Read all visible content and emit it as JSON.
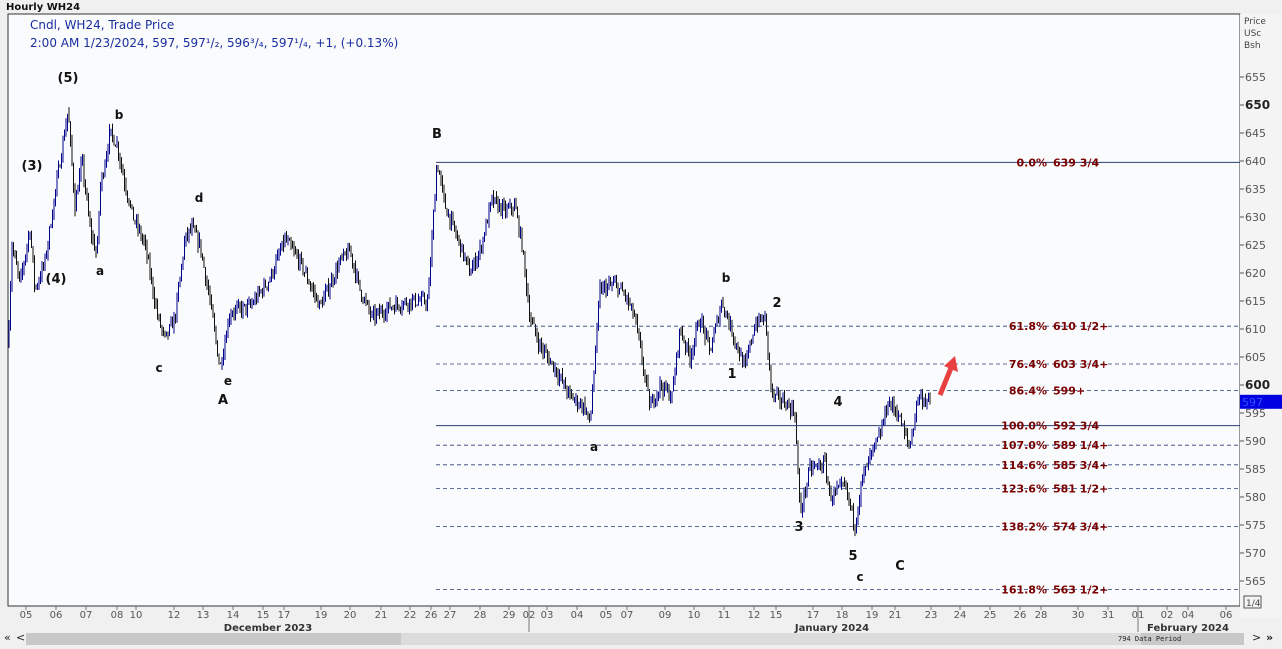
{
  "window": {
    "title": "Hourly WH24"
  },
  "legend": {
    "line1": "Cndl, WH24, Trade Price",
    "line2": "2:00 AM 1/23/2024, 597, 597¹/₂, 596³/₄, 597¹/₄, +1, (+0.13%)"
  },
  "axis": {
    "unit_lines": [
      "Price",
      "USc",
      "Bsh"
    ],
    "page": "1/4",
    "data_period": "794 Data Period",
    "nav_first": "«",
    "nav_prev": "<",
    "nav_next": ">",
    "nav_last": "»"
  },
  "chart_data": {
    "type": "candlestick",
    "instrument": "WH24",
    "interval": "Hourly",
    "ylim": [
      562,
      657
    ],
    "y_ticks": [
      655,
      650,
      645,
      640,
      635,
      630,
      625,
      620,
      615,
      610,
      605,
      600,
      595,
      590,
      585,
      580,
      575,
      570,
      565
    ],
    "x_ticks": [
      "05",
      "06",
      "07",
      "08",
      "10",
      "12",
      "13",
      "14",
      "15",
      "17",
      "19",
      "20",
      "21",
      "22",
      "26",
      "27",
      "28",
      "29",
      "02",
      "03",
      "04",
      "05",
      "07",
      "09",
      "10",
      "11",
      "12",
      "15",
      "17",
      "18",
      "19",
      "21",
      "23",
      "24",
      "25",
      "26",
      "28",
      "30",
      "31",
      "01",
      "02",
      "04",
      "06"
    ],
    "month_labels": [
      "December 2023",
      "January 2024",
      "February 2024"
    ],
    "last": {
      "time": "2:00 AM 1/23/2024",
      "open": 597,
      "high": 597.5,
      "low": 596.75,
      "close": 597.25,
      "change": 1,
      "change_pct": 0.13
    },
    "last_price_marker": "597",
    "fib_levels": [
      {
        "pct": "0.0%",
        "label": "639 3/4",
        "price": 639.75,
        "style": "solid"
      },
      {
        "pct": "61.8%",
        "label": "610 1/2+",
        "price": 610.5,
        "style": "dashed"
      },
      {
        "pct": "76.4%",
        "label": "603 3/4+",
        "price": 603.75,
        "style": "dashed"
      },
      {
        "pct": "86.4%",
        "label": "599+",
        "price": 599,
        "style": "dashed"
      },
      {
        "pct": "100.0%",
        "label": "592 3/4",
        "price": 592.75,
        "style": "solid"
      },
      {
        "pct": "107.0%",
        "label": "589 1/4+",
        "price": 589.25,
        "style": "dashed"
      },
      {
        "pct": "114.6%",
        "label": "585 3/4+",
        "price": 585.75,
        "style": "dashed"
      },
      {
        "pct": "123.6%",
        "label": "581 1/2+",
        "price": 581.5,
        "style": "dashed"
      },
      {
        "pct": "138.2%",
        "label": "574 3/4+",
        "price": 574.75,
        "style": "dashed"
      },
      {
        "pct": "161.8%",
        "label": "563 1/2+",
        "price": 563.5,
        "style": "dashed"
      }
    ],
    "wave_labels": [
      "(5)",
      "(3)",
      "(4)",
      "b",
      "a",
      "d",
      "c",
      "e",
      "A",
      "B",
      "b",
      "2",
      "1",
      "a",
      "4",
      "3",
      "5",
      "c",
      "C"
    ],
    "colors": {
      "candle": "#00008b",
      "fib_text": "#7a0000",
      "line": "#2a3f7a",
      "arrow": "#e84040",
      "marker": "#0000e0"
    }
  }
}
